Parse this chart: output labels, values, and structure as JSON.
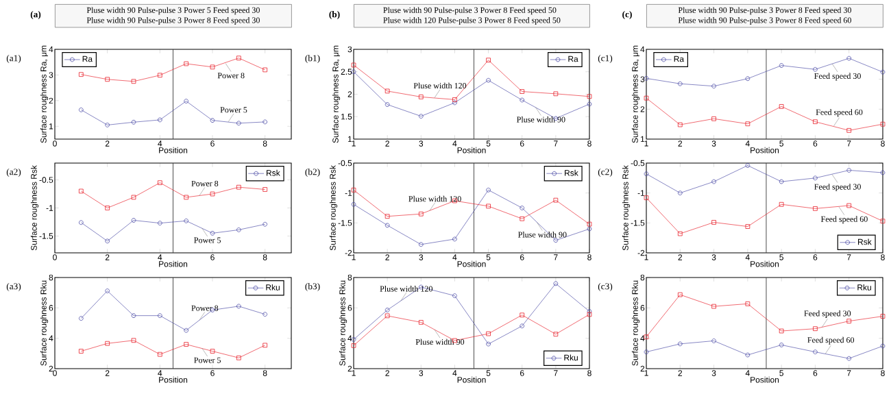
{
  "chart_data": [
    {
      "type": "line",
      "title": "(a1)",
      "xlabel": "Position",
      "ylabel": "Surface roughness Ra, μm",
      "x": [
        1,
        2,
        3,
        4,
        5,
        6,
        7,
        8
      ],
      "xlim": [
        0,
        9
      ],
      "xticks": [
        0,
        2,
        4,
        6,
        8
      ],
      "ylim": [
        0.5,
        4
      ],
      "yticks": [
        1,
        2,
        3,
        4
      ],
      "legend": "top left",
      "series": [
        {
          "name": "Ra",
          "color": "#4b4ba6",
          "marker": "circle",
          "values": [
            1.64,
            1.05,
            1.16,
            1.25,
            1.98,
            1.23,
            1.12,
            1.17
          ]
        },
        {
          "color": "#e8202a",
          "marker": "square",
          "values": [
            3.02,
            2.83,
            2.75,
            2.99,
            3.44,
            3.31,
            3.66,
            3.2
          ]
        }
      ],
      "ref_lines": [
        {
          "axis": "x",
          "value": 4.5,
          "color": "#404040"
        }
      ],
      "annotations": [
        "(a)",
        "Pluse width 90   Pulse-pulse 3   Power 5  Feed speed 30",
        "Pluse width 90   Pulse-pulse 3   Power 8  Feed speed 30",
        {
          "text": "Power 8",
          "x": 6.5,
          "y": 3.45
        },
        {
          "text": "Power 5",
          "x": 6.6,
          "y": 1.17
        }
      ]
    },
    {
      "type": "line",
      "title": "(b1)",
      "xlabel": "Position",
      "ylabel": "Surface roughness Ra, μm",
      "x": [
        1,
        2,
        3,
        4,
        5,
        6,
        7,
        8
      ],
      "xlim": [
        1,
        8
      ],
      "xticks": [
        1,
        2,
        3,
        4,
        5,
        6,
        7,
        8
      ],
      "ylim": [
        1,
        3
      ],
      "yticks": [
        1,
        1.5,
        2,
        2.5,
        3
      ],
      "legend": "top right",
      "series": [
        {
          "name": "Ra",
          "color": "#4b4ba6",
          "marker": "circle",
          "values": [
            2.5,
            1.77,
            1.51,
            1.81,
            2.31,
            1.87,
            1.46,
            1.78
          ]
        },
        {
          "color": "#e8202a",
          "marker": "square",
          "values": [
            2.65,
            2.07,
            1.94,
            1.88,
            2.76,
            2.06,
            2.01,
            1.95
          ]
        }
      ],
      "ref_lines": [
        {
          "axis": "x",
          "value": 4.57,
          "color": "#404040"
        }
      ],
      "annotations": [
        "(b)",
        "Pluse width 90   Pulse-pulse 3   Power 8  Feed speed 50",
        "Pluse width 120   Pulse-pulse 3   Power 8  Feed speed 50",
        {
          "text": "Pluse width 120",
          "x": 3.4,
          "y": 1.92
        },
        {
          "text": "Pluse width 90",
          "x": 6.4,
          "y": 1.71
        }
      ]
    },
    {
      "type": "line",
      "title": "(c1)",
      "xlabel": "Position",
      "ylabel": "Surface roughness Ra, μm",
      "x": [
        1,
        2,
        3,
        4,
        5,
        6,
        7,
        8
      ],
      "xlim": [
        1,
        8
      ],
      "xticks": [
        1,
        2,
        3,
        4,
        5,
        6,
        7,
        8
      ],
      "ylim": [
        1,
        4
      ],
      "yticks": [
        1,
        2,
        3,
        4
      ],
      "legend": "top left",
      "series": [
        {
          "name": "Ra",
          "color": "#4b4ba6",
          "marker": "circle",
          "values": [
            3.03,
            2.85,
            2.77,
            3.02,
            3.46,
            3.33,
            3.7,
            3.24
          ]
        },
        {
          "color": "#e8202a",
          "marker": "square",
          "values": [
            2.37,
            1.48,
            1.68,
            1.51,
            2.09,
            1.58,
            1.29,
            1.5
          ]
        }
      ],
      "ref_lines": [
        {
          "axis": "x",
          "value": 4.55,
          "color": "#404040"
        }
      ],
      "annotations": [
        "(c)",
        "Pluse width 90   Pulse-pulse 3   Power 8  Feed speed 30",
        "Pluse width 90   Pulse-pulse 3   Power 8  Feed speed 60",
        {
          "text": "Feed speed 30",
          "x": 6.5,
          "y": 3.52
        },
        {
          "text": "Feed speed 60",
          "x": 6.55,
          "y": 1.44
        }
      ]
    },
    {
      "type": "line",
      "title": "(a2)",
      "xlabel": "Position",
      "ylabel": "Surface roughness Rsk",
      "x": [
        1,
        2,
        3,
        4,
        5,
        6,
        7,
        8
      ],
      "xlim": [
        0,
        9
      ],
      "xticks": [
        0,
        2,
        4,
        6,
        8
      ],
      "ylim": [
        -1.8,
        -0.2
      ],
      "yticks": [
        -1.5,
        -1,
        -0.5
      ],
      "legend": "top right",
      "series": [
        {
          "name": "Rsk",
          "color": "#4b4ba6",
          "marker": "circle",
          "values": [
            -1.26,
            -1.59,
            -1.22,
            -1.27,
            -1.23,
            -1.45,
            -1.39,
            -1.29
          ]
        },
        {
          "color": "#e8202a",
          "marker": "square",
          "values": [
            -0.7,
            -1.0,
            -0.81,
            -0.55,
            -0.81,
            -0.75,
            -0.63,
            -0.67
          ]
        }
      ],
      "ref_lines": [
        {
          "axis": "x",
          "value": 4.5,
          "color": "#404040"
        }
      ],
      "annotations": [
        {
          "text": "Power 8",
          "x": 5.5,
          "y": -0.78
        },
        {
          "text": "Power 5",
          "x": 5.6,
          "y": -1.36
        }
      ]
    },
    {
      "type": "line",
      "title": "(b2)",
      "xlabel": "Position",
      "ylabel": "Surface roughness Rsk",
      "x": [
        1,
        2,
        3,
        4,
        5,
        6,
        7,
        8
      ],
      "xlim": [
        1,
        8
      ],
      "xticks": [
        1,
        2,
        3,
        4,
        5,
        6,
        7,
        8
      ],
      "ylim": [
        -2,
        -0.5
      ],
      "yticks": [
        -2,
        -1.5,
        -1,
        -0.5
      ],
      "legend": "top right",
      "series": [
        {
          "name": "Rsk",
          "color": "#4b4ba6",
          "marker": "circle",
          "values": [
            -1.19,
            -1.54,
            -1.86,
            -1.77,
            -0.95,
            -1.25,
            -1.79,
            -1.6
          ]
        },
        {
          "color": "#e8202a",
          "marker": "square",
          "values": [
            -0.95,
            -1.39,
            -1.35,
            -1.13,
            -1.22,
            -1.43,
            -1.12,
            -1.52
          ]
        }
      ],
      "ref_lines": [
        {
          "axis": "x",
          "value": 4.57,
          "color": "#404040"
        }
      ],
      "annotations": [
        {
          "text": "Pluse width 120",
          "x": 3.25,
          "y": -1.3
        },
        {
          "text": "Pluse width 90",
          "x": 6.44,
          "y": -1.49
        }
      ]
    },
    {
      "type": "line",
      "title": "(c2)",
      "xlabel": "Position",
      "ylabel": "Surface roughness Rsk",
      "x": [
        1,
        2,
        3,
        4,
        5,
        6,
        7,
        8
      ],
      "xlim": [
        1,
        8
      ],
      "xticks": [
        1,
        2,
        3,
        4,
        5,
        6,
        7,
        8
      ],
      "ylim": [
        -2,
        -0.5
      ],
      "yticks": [
        -2,
        -1.5,
        -1,
        -0.5
      ],
      "legend": "bottom right",
      "series": [
        {
          "name": "Rsk",
          "color": "#4b4ba6",
          "marker": "circle",
          "values": [
            -0.68,
            -1.0,
            -0.81,
            -0.54,
            -0.81,
            -0.75,
            -0.62,
            -0.66
          ]
        },
        {
          "color": "#e8202a",
          "marker": "square",
          "values": [
            -1.08,
            -1.68,
            -1.49,
            -1.56,
            -1.19,
            -1.26,
            -1.21,
            -1.47
          ]
        }
      ],
      "ref_lines": [
        {
          "axis": "x",
          "value": 4.55,
          "color": "#404040"
        }
      ],
      "annotations": [
        {
          "text": "Feed speed 30",
          "x": 6.5,
          "y": -0.69
        },
        {
          "text": "Feed speed 60",
          "x": 6.7,
          "y": -1.23
        }
      ]
    },
    {
      "type": "line",
      "title": "(a3)",
      "xlabel": "Position",
      "ylabel": "Surface roughness Rku",
      "x": [
        1,
        2,
        3,
        4,
        5,
        6,
        7,
        8
      ],
      "xlim": [
        0,
        9
      ],
      "xticks": [
        0,
        2,
        4,
        6,
        8
      ],
      "ylim": [
        2,
        8
      ],
      "yticks": [
        2,
        4,
        6,
        8
      ],
      "legend": "top right",
      "series": [
        {
          "name": "Rku",
          "color": "#4b4ba6",
          "marker": "circle",
          "values": [
            5.31,
            7.12,
            5.49,
            5.49,
            4.52,
            5.86,
            6.11,
            5.58
          ]
        },
        {
          "color": "#e8202a",
          "marker": "square",
          "values": [
            3.15,
            3.66,
            3.86,
            2.94,
            3.6,
            3.15,
            2.71,
            3.54
          ]
        }
      ],
      "ref_lines": [
        {
          "axis": "x",
          "value": 4.5,
          "color": "#404040"
        }
      ],
      "annotations": [
        {
          "text": "Power 8",
          "x": 5.5,
          "y": 5.19
        },
        {
          "text": "Power 5",
          "x": 5.6,
          "y": 3.35
        }
      ]
    },
    {
      "type": "line",
      "title": "(b3)",
      "xlabel": "Position",
      "ylabel": "Surface roughness Rku",
      "x": [
        1,
        2,
        3,
        4,
        5,
        6,
        7,
        8
      ],
      "xlim": [
        1,
        8
      ],
      "xticks": [
        1,
        2,
        3,
        4,
        5,
        6,
        7,
        8
      ],
      "ylim": [
        2,
        8
      ],
      "yticks": [
        2,
        4,
        6,
        8
      ],
      "legend": "bottom right",
      "series": [
        {
          "name": "Rku",
          "color": "#4b4ba6",
          "marker": "circle",
          "values": [
            3.92,
            5.86,
            7.37,
            6.8,
            3.62,
            4.81,
            7.6,
            5.77
          ]
        },
        {
          "color": "#e8202a",
          "marker": "square",
          "values": [
            3.52,
            5.48,
            5.05,
            3.85,
            4.3,
            5.53,
            4.27,
            5.57
          ]
        }
      ],
      "ref_lines": [
        {
          "axis": "x",
          "value": 4.57,
          "color": "#404040"
        }
      ],
      "annotations": [
        {
          "text": "Pluse width 120",
          "x": 2.4,
          "y": 6.46
        },
        {
          "text": "Pluse width 90",
          "x": 3.4,
          "y": 4.57
        }
      ]
    },
    {
      "type": "line",
      "title": "(c3)",
      "xlabel": "Position",
      "ylabel": "Surface roughness Rku",
      "x": [
        1,
        2,
        3,
        4,
        5,
        6,
        7,
        8
      ],
      "xlim": [
        1,
        8
      ],
      "xticks": [
        1,
        2,
        3,
        4,
        5,
        6,
        7,
        8
      ],
      "ylim": [
        2,
        8
      ],
      "yticks": [
        2,
        4,
        6,
        8
      ],
      "legend": "top right",
      "series": [
        {
          "name": "Rku",
          "color": "#4b4ba6",
          "marker": "circle",
          "values": [
            3.1,
            3.63,
            3.83,
            2.9,
            3.56,
            3.1,
            2.67,
            3.49
          ]
        },
        {
          "color": "#e8202a",
          "marker": "square",
          "values": [
            4.09,
            6.87,
            6.1,
            6.27,
            4.48,
            4.63,
            5.13,
            5.45
          ]
        }
      ],
      "ref_lines": [
        {
          "axis": "x",
          "value": 4.55,
          "color": "#404040"
        }
      ],
      "annotations": [
        {
          "text": "Feed speed 30",
          "x": 6.2,
          "y": 4.73
        },
        {
          "text": "Feed speed 60",
          "x": 6.3,
          "y": 2.98
        }
      ]
    }
  ]
}
